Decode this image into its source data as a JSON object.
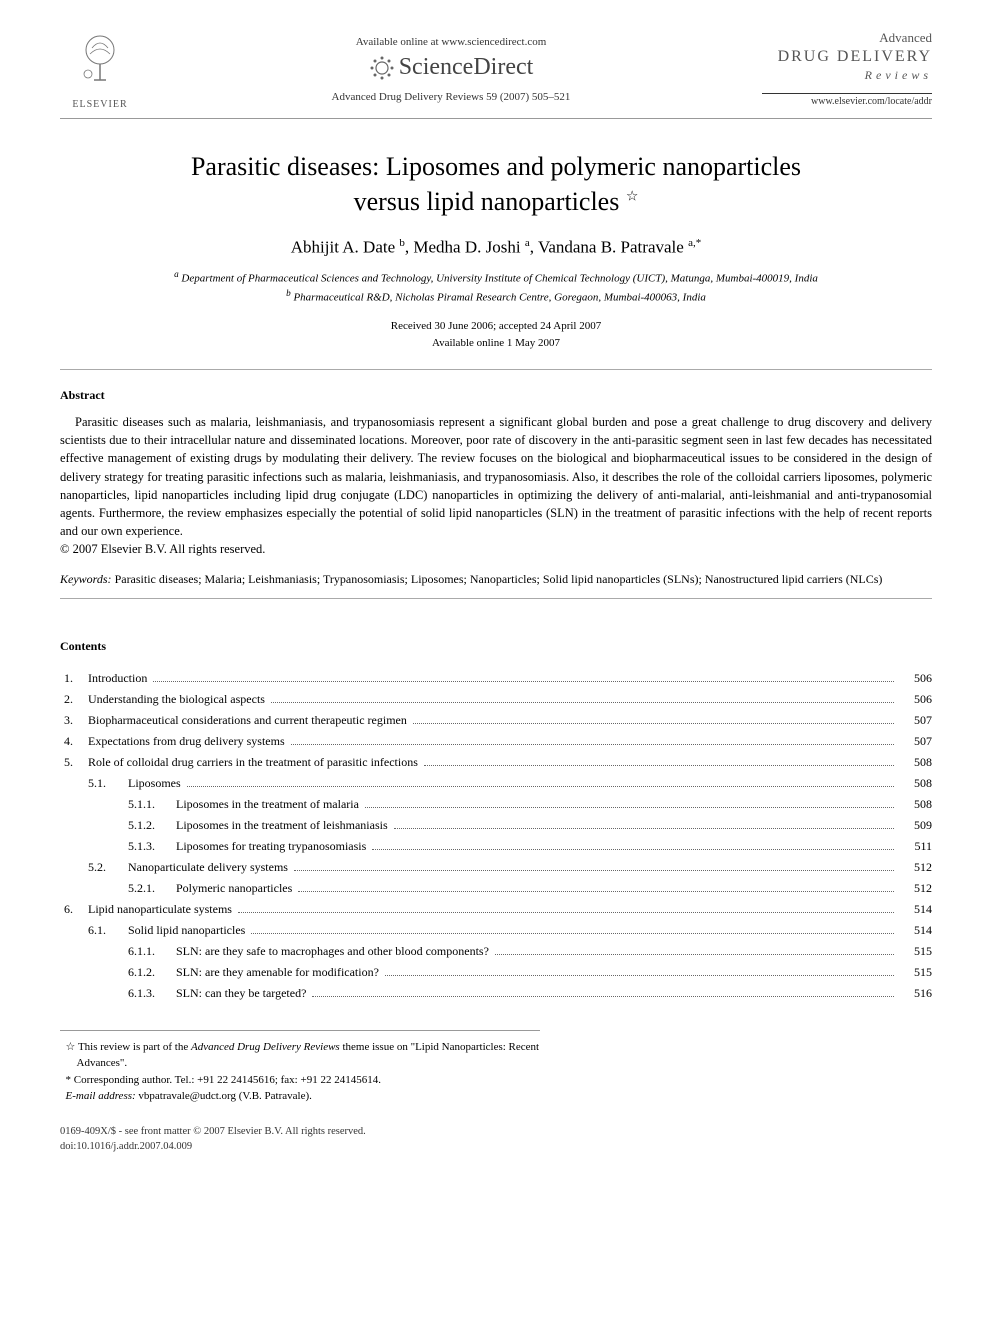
{
  "header": {
    "available_online": "Available online at www.sciencedirect.com",
    "sciencedirect": "ScienceDirect",
    "journal_ref": "Advanced Drug Delivery Reviews 59 (2007) 505–521",
    "elsevier_label": "ELSEVIER",
    "journal_name_l1": "Advanced",
    "journal_name_l2": "DRUG DELIVERY",
    "journal_name_l3": "Reviews",
    "locate_url": "www.elsevier.com/locate/addr"
  },
  "article": {
    "title_line1": "Parasitic diseases: Liposomes and polymeric nanoparticles",
    "title_line2": "versus lipid nanoparticles",
    "star_note_marker": "☆",
    "authors_html": "Abhijit A. Date ᵇ, Medha D. Joshi ᵃ, Vandana B. Patravale ᵃ,*",
    "authors": [
      {
        "name": "Abhijit A. Date",
        "aff": "b"
      },
      {
        "name": "Medha D. Joshi",
        "aff": "a"
      },
      {
        "name": "Vandana B. Patravale",
        "aff": "a",
        "corr": true
      }
    ],
    "affiliations": {
      "a": "Department of Pharmaceutical Sciences and Technology, University Institute of Chemical Technology (UICT), Matunga, Mumbai-400019, India",
      "b": "Pharmaceutical R&D, Nicholas Piramal Research Centre, Goregaon, Mumbai-400063, India"
    },
    "dates_line1": "Received 30 June 2006; accepted 24 April 2007",
    "dates_line2": "Available online 1 May 2007"
  },
  "abstract": {
    "heading": "Abstract",
    "body": "Parasitic diseases such as malaria, leishmaniasis, and trypanosomiasis represent a significant global burden and pose a great challenge to drug discovery and delivery scientists due to their intracellular nature and disseminated locations. Moreover, poor rate of discovery in the anti-parasitic segment seen in last few decades has necessitated effective management of existing drugs by modulating their delivery. The review focuses on the biological and biopharmaceutical issues to be considered in the design of delivery strategy for treating parasitic infections such as malaria, leishmaniasis, and trypanosomiasis. Also, it describes the role of the colloidal carriers liposomes, polymeric nanoparticles, lipid nanoparticles including lipid drug conjugate (LDC) nanoparticles in optimizing the delivery of anti-malarial, anti-leishmanial and anti-trypanosomial agents. Furthermore, the review emphasizes especially the potential of solid lipid nanoparticles (SLN) in the treatment of parasitic infections with the help of recent reports and our own experience.",
    "copyright": "© 2007 Elsevier B.V. All rights reserved."
  },
  "keywords": {
    "label": "Keywords:",
    "text": "Parasitic diseases; Malaria; Leishmaniasis; Trypanosomiasis; Liposomes; Nanoparticles; Solid lipid nanoparticles (SLNs); Nanostructured lipid carriers (NLCs)"
  },
  "contents": {
    "heading": "Contents",
    "items": [
      {
        "level": 1,
        "num": "1.",
        "title": "Introduction",
        "page": "506"
      },
      {
        "level": 1,
        "num": "2.",
        "title": "Understanding the biological aspects",
        "page": "506"
      },
      {
        "level": 1,
        "num": "3.",
        "title": "Biopharmaceutical considerations and current therapeutic regimen",
        "page": "507"
      },
      {
        "level": 1,
        "num": "4.",
        "title": "Expectations from drug delivery systems",
        "page": "507"
      },
      {
        "level": 1,
        "num": "5.",
        "title": "Role of colloidal drug carriers in the treatment of parasitic infections",
        "page": "508"
      },
      {
        "level": 2,
        "num": "5.1.",
        "title": "Liposomes",
        "page": "508"
      },
      {
        "level": 3,
        "num": "5.1.1.",
        "title": "Liposomes in the treatment of malaria",
        "page": "508"
      },
      {
        "level": 3,
        "num": "5.1.2.",
        "title": "Liposomes in the treatment of leishmaniasis",
        "page": "509"
      },
      {
        "level": 3,
        "num": "5.1.3.",
        "title": "Liposomes for treating trypanosomiasis",
        "page": "511"
      },
      {
        "level": 2,
        "num": "5.2.",
        "title": "Nanoparticulate delivery systems",
        "page": "512"
      },
      {
        "level": 3,
        "num": "5.2.1.",
        "title": "Polymeric nanoparticles",
        "page": "512"
      },
      {
        "level": 1,
        "num": "6.",
        "title": "Lipid nanoparticulate systems",
        "page": "514"
      },
      {
        "level": 2,
        "num": "6.1.",
        "title": "Solid lipid nanoparticles",
        "page": "514"
      },
      {
        "level": 3,
        "num": "6.1.1.",
        "title": "SLN: are they safe to macrophages and other blood components?",
        "page": "515"
      },
      {
        "level": 3,
        "num": "6.1.2.",
        "title": "SLN: are they amenable for modification?",
        "page": "515"
      },
      {
        "level": 3,
        "num": "6.1.3.",
        "title": "SLN: can they be targeted?",
        "page": "516"
      }
    ]
  },
  "footnotes": {
    "star": "This review is part of the Advanced Drug Delivery Reviews theme issue on \"Lipid Nanoparticles: Recent Advances\".",
    "star_marker": "☆",
    "corr_marker": "*",
    "corr": "Corresponding author. Tel.: +91 22 24145616; fax: +91 22 24145614.",
    "email_label": "E-mail address:",
    "email": "vbpatravale@udct.org",
    "email_who": "(V.B. Patravale)."
  },
  "footer": {
    "issn_line": "0169-409X/$ - see front matter © 2007 Elsevier B.V. All rights reserved.",
    "doi": "doi:10.1016/j.addr.2007.04.009"
  },
  "style": {
    "page_bg": "#ffffff",
    "text_color": "#000000",
    "rule_color": "#999999",
    "muted_color": "#555555",
    "dot_leader_color": "#666666",
    "font_family": "Times New Roman",
    "title_fontsize_pt": 20,
    "body_fontsize_pt": 10,
    "toc_fontsize_pt": 9
  }
}
